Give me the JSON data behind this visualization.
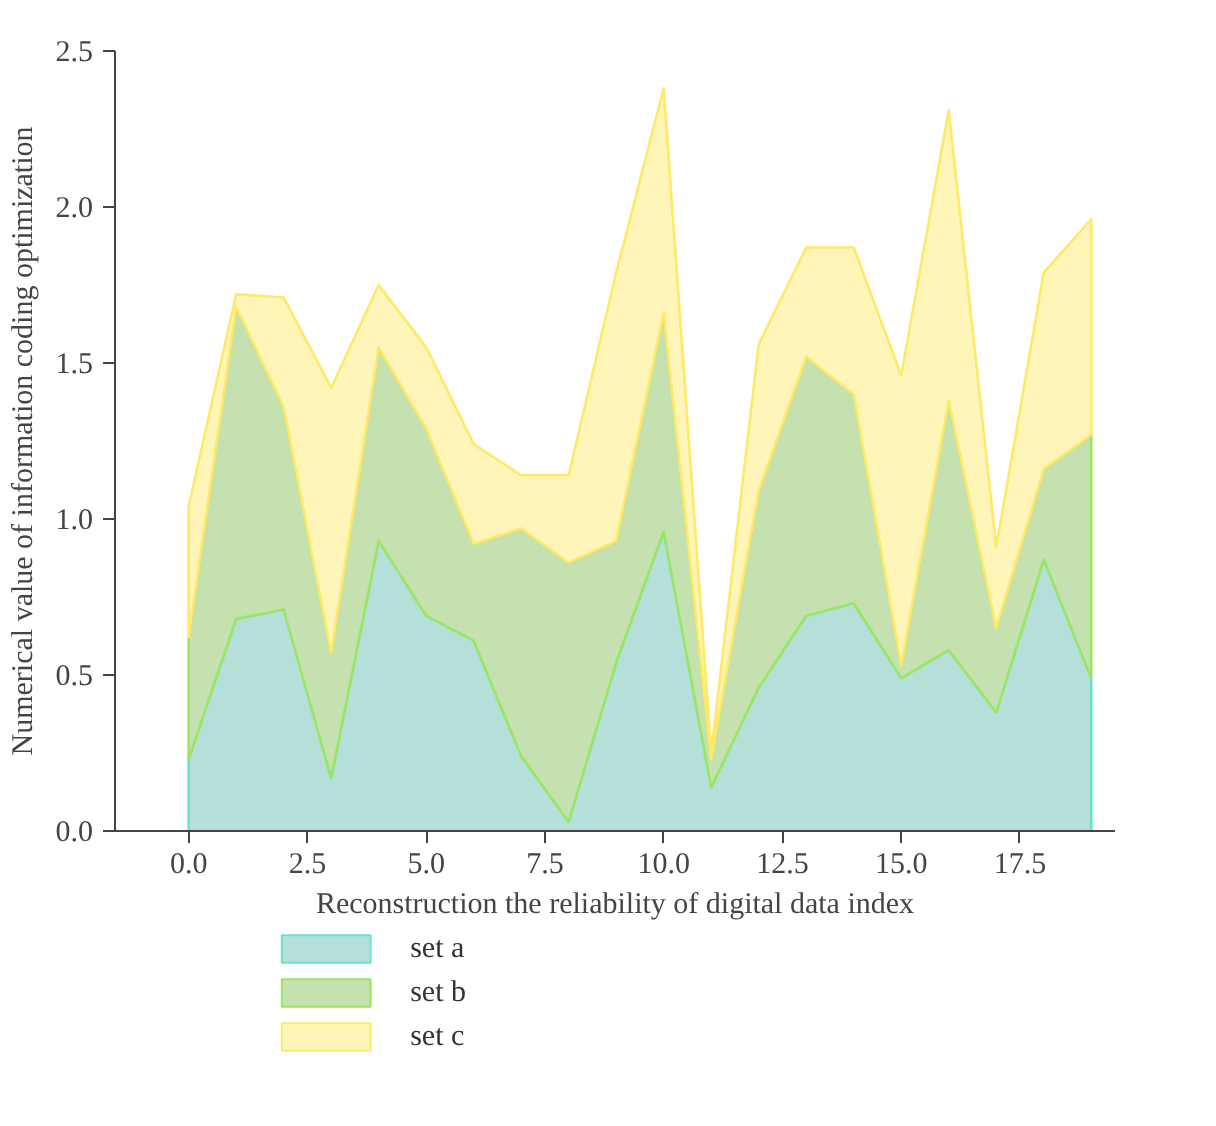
{
  "chart_data": {
    "type": "area",
    "stacked": true,
    "xlabel": "Reconstruction the reliability of digital data index",
    "ylabel": "Numerical value of information coding optimization",
    "x": [
      0,
      1,
      2,
      3,
      4,
      5,
      6,
      7,
      8,
      9,
      10,
      11,
      12,
      13,
      14,
      15,
      16,
      17,
      18,
      19
    ],
    "series": [
      {
        "name": "set a",
        "color": "#b5e0da",
        "values": [
          0.23,
          0.68,
          0.71,
          0.17,
          0.93,
          0.69,
          0.61,
          0.24,
          0.03,
          0.54,
          0.96,
          0.14,
          0.46,
          0.69,
          0.73,
          0.49,
          0.58,
          0.38,
          0.87,
          0.49
        ]
      },
      {
        "name": "set b",
        "color": "#c5e1b0",
        "values": [
          0.39,
          1.0,
          0.65,
          0.4,
          0.62,
          0.6,
          0.31,
          0.73,
          0.83,
          0.39,
          0.7,
          0.09,
          0.63,
          0.83,
          0.67,
          0.04,
          0.8,
          0.27,
          0.29,
          0.78
        ]
      },
      {
        "name": "set c",
        "color": "#fff5b8",
        "values": [
          0.42,
          0.04,
          0.35,
          0.85,
          0.2,
          0.26,
          0.32,
          0.17,
          0.28,
          0.86,
          0.72,
          0.02,
          0.47,
          0.35,
          0.47,
          0.93,
          0.93,
          0.26,
          0.63,
          0.69
        ]
      }
    ],
    "xlim": [
      -1.55,
      19.5
    ],
    "ylim": [
      0,
      2.5
    ],
    "xticks": [
      {
        "value": 0,
        "label": "0.0"
      },
      {
        "value": 2.5,
        "label": "2.5"
      },
      {
        "value": 5,
        "label": "5.0"
      },
      {
        "value": 7.5,
        "label": "7.5"
      },
      {
        "value": 10,
        "label": "10.0"
      },
      {
        "value": 12.5,
        "label": "12.5"
      },
      {
        "value": 15,
        "label": "15.0"
      },
      {
        "value": 17.5,
        "label": "17.5"
      }
    ],
    "yticks": [
      {
        "value": 0,
        "label": "0.0"
      },
      {
        "value": 0.5,
        "label": "0.5"
      },
      {
        "value": 1,
        "label": "1.0"
      },
      {
        "value": 1.5,
        "label": "1.5"
      },
      {
        "value": 2,
        "label": "2.0"
      },
      {
        "value": 2.5,
        "label": "2.5"
      }
    ],
    "grid": false,
    "legend": "bottom left"
  }
}
